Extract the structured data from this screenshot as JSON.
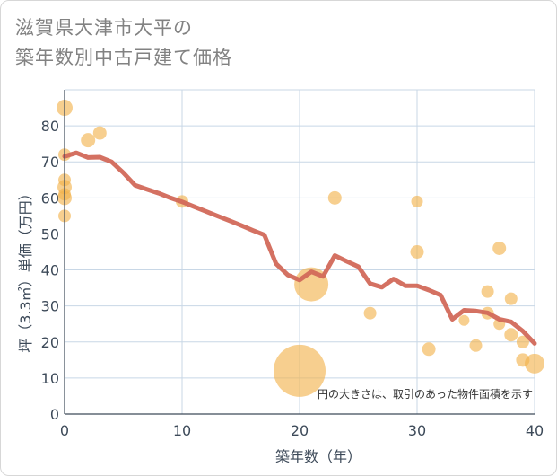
{
  "chart_data": {
    "type": "scatter",
    "title_lines": [
      "滋賀県大津市大平の",
      "築年数別中古戸建て価格"
    ],
    "xlabel": "築年数（年）",
    "ylabel": "坪（3.3㎡）単価（万円）",
    "xlim": [
      0,
      40
    ],
    "ylim": [
      0,
      90
    ],
    "xticks": [
      0,
      10,
      20,
      30,
      40
    ],
    "yticks": [
      0,
      10,
      20,
      30,
      40,
      50,
      60,
      70,
      80
    ],
    "grid": true,
    "note": "円の大きさは、取引のあった物件面積を示す",
    "colors": {
      "bubble": "#f2b24b",
      "line": "#d2695a",
      "grid": "#c8d7e6",
      "axis": "#3d4a59"
    },
    "points": [
      {
        "x": 0,
        "y": 85,
        "size": 9
      },
      {
        "x": 0,
        "y": 72,
        "size": 7
      },
      {
        "x": 0,
        "y": 65,
        "size": 7
      },
      {
        "x": 0,
        "y": 63,
        "size": 8
      },
      {
        "x": 0,
        "y": 61,
        "size": 7
      },
      {
        "x": 0,
        "y": 60,
        "size": 8
      },
      {
        "x": 0,
        "y": 55,
        "size": 7
      },
      {
        "x": 2,
        "y": 76,
        "size": 8
      },
      {
        "x": 3,
        "y": 78,
        "size": 7.5
      },
      {
        "x": 10,
        "y": 59,
        "size": 7
      },
      {
        "x": 20,
        "y": 12,
        "size": 29
      },
      {
        "x": 21,
        "y": 36,
        "size": 19
      },
      {
        "x": 23,
        "y": 60,
        "size": 7.5
      },
      {
        "x": 26,
        "y": 28,
        "size": 7
      },
      {
        "x": 30,
        "y": 59,
        "size": 6.5
      },
      {
        "x": 30,
        "y": 45,
        "size": 7.5
      },
      {
        "x": 31,
        "y": 18,
        "size": 7.5
      },
      {
        "x": 34,
        "y": 26,
        "size": 6
      },
      {
        "x": 35,
        "y": 19,
        "size": 7
      },
      {
        "x": 36,
        "y": 34,
        "size": 7
      },
      {
        "x": 36,
        "y": 28,
        "size": 7
      },
      {
        "x": 37,
        "y": 46,
        "size": 7.5
      },
      {
        "x": 37,
        "y": 25,
        "size": 6.5
      },
      {
        "x": 38,
        "y": 32,
        "size": 7
      },
      {
        "x": 38,
        "y": 22,
        "size": 7.5
      },
      {
        "x": 39,
        "y": 20,
        "size": 7
      },
      {
        "x": 39,
        "y": 15,
        "size": 7.5
      },
      {
        "x": 40,
        "y": 14,
        "size": 11
      }
    ],
    "trend": {
      "x": [
        0,
        1,
        2,
        3,
        4,
        5,
        6,
        7,
        8,
        9,
        10,
        11,
        12,
        13,
        14,
        15,
        16,
        17,
        18,
        19,
        20,
        21,
        22,
        23,
        24,
        25,
        26,
        27,
        28,
        29,
        30,
        31,
        32,
        33,
        34,
        35,
        36,
        37,
        38,
        39,
        40
      ],
      "y": [
        71.5,
        72.5,
        71.2,
        71.3,
        70,
        67,
        63.5,
        62.4,
        61.3,
        60,
        58.9,
        57.6,
        56.3,
        55,
        53.7,
        52.4,
        51,
        49.7,
        41.7,
        38.6,
        37.2,
        39.5,
        38.2,
        44,
        42.4,
        40.9,
        36.2,
        35.2,
        37.5,
        35.6,
        35.6,
        34.4,
        33,
        26.3,
        28.8,
        28.6,
        28.1,
        26.3,
        25.6,
        23,
        19.6
      ]
    }
  }
}
